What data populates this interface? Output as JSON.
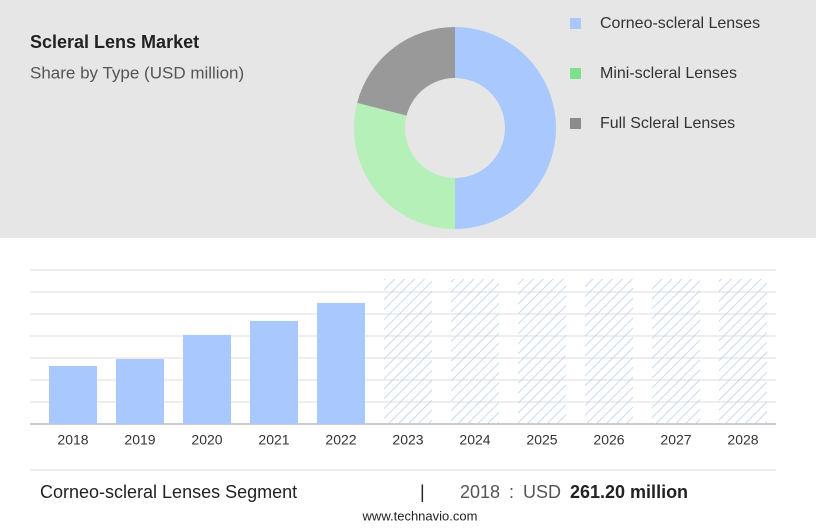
{
  "chart_data": [
    {
      "type": "pie",
      "title": "Scleral Lens Market",
      "subtitle": "Share by Type (USD million)",
      "categories": [
        "Corneo-scleral Lenses",
        "Mini-scleral Lenses",
        "Full Scleral Lenses"
      ],
      "values": [
        50,
        29,
        21
      ],
      "colors": [
        "#a8c8fe",
        "#b5f0b8",
        "#999999"
      ],
      "legend_colors": [
        "#a8c8fe",
        "#7ee08e",
        "#8c8c8c"
      ]
    },
    {
      "type": "bar",
      "categories": [
        "2018",
        "2019",
        "2020",
        "2021",
        "2022",
        "2023",
        "2024",
        "2025",
        "2026",
        "2027",
        "2028"
      ],
      "values": [
        261.2,
        292.7,
        400.8,
        463.8,
        544.9,
        null,
        null,
        null,
        null,
        null,
        null
      ],
      "color": "#a8c8fe",
      "ylim": [
        0,
        693
      ],
      "grid": true
    }
  ],
  "footer": {
    "segment": "Corneo-scleral Lenses Segment",
    "separator": "|",
    "year": "2018",
    "colon": ":",
    "currency": "USD",
    "value": "261.20 million"
  },
  "source": "www.technavio.com"
}
